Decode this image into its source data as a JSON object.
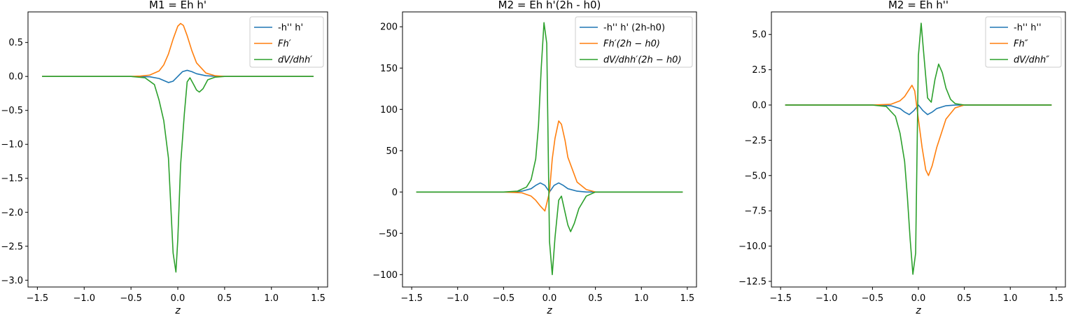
{
  "figure": {
    "background": "#ffffff"
  },
  "series_colors": [
    "#1f77b4",
    "#ff7f0e",
    "#2ca02c"
  ],
  "chart_data": [
    {
      "type": "line",
      "title": "M1 = Eh h'",
      "xlabel": "z",
      "ylabel": "",
      "xlim": [
        -1.6,
        1.6
      ],
      "ylim": [
        -3.1,
        0.95
      ],
      "xticks": [
        -1.5,
        -1.0,
        -0.5,
        0.0,
        0.5,
        1.0,
        1.5
      ],
      "xtick_labels": [
        "−1.5",
        "−1.0",
        "−0.5",
        "0.0",
        "0.5",
        "1.0",
        "1.5"
      ],
      "yticks": [
        0.5,
        0.0,
        -0.5,
        -1.0,
        -1.5,
        -2.0,
        -2.5,
        -3.0
      ],
      "ytick_labels": [
        "0.5",
        "0.0",
        "−0.5",
        "−1.0",
        "−1.5",
        "−2.0",
        "−2.5",
        "−3.0"
      ],
      "grid": false,
      "legend_position": "top-right",
      "series": [
        {
          "name": "-h'' h'",
          "color": "#1f77b4",
          "x": [
            -1.45,
            -0.5,
            -0.3,
            -0.2,
            -0.15,
            -0.1,
            -0.05,
            0.0,
            0.05,
            0.1,
            0.15,
            0.2,
            0.3,
            0.4,
            0.5,
            1.45
          ],
          "y": [
            0.0,
            0.0,
            -0.005,
            -0.03,
            -0.06,
            -0.09,
            -0.07,
            0.0,
            0.07,
            0.09,
            0.07,
            0.04,
            0.01,
            0.003,
            0.0,
            0.0
          ]
        },
        {
          "name": "Fh′",
          "color": "#ff7f0e",
          "x": [
            -1.45,
            -0.5,
            -0.4,
            -0.3,
            -0.2,
            -0.15,
            -0.1,
            -0.05,
            0.0,
            0.03,
            0.06,
            0.1,
            0.15,
            0.2,
            0.3,
            0.4,
            0.5,
            1.45
          ],
          "y": [
            0.0,
            0.0,
            0.005,
            0.02,
            0.08,
            0.17,
            0.33,
            0.55,
            0.74,
            0.78,
            0.75,
            0.6,
            0.38,
            0.2,
            0.05,
            0.01,
            0.0,
            0.0
          ],
          "math": true
        },
        {
          "name": "dV/dhh′",
          "color": "#2ca02c",
          "x": [
            -1.45,
            -0.5,
            -0.35,
            -0.25,
            -0.2,
            -0.15,
            -0.1,
            -0.05,
            -0.02,
            0.0,
            0.03,
            0.07,
            0.1,
            0.13,
            0.17,
            0.2,
            0.23,
            0.27,
            0.32,
            0.4,
            0.5,
            1.45
          ],
          "y": [
            0.0,
            0.0,
            -0.02,
            -0.12,
            -0.35,
            -0.65,
            -1.2,
            -2.6,
            -2.88,
            -2.4,
            -1.3,
            -0.55,
            -0.08,
            -0.02,
            -0.12,
            -0.2,
            -0.23,
            -0.18,
            -0.05,
            -0.01,
            0.0,
            0.0
          ],
          "math": true
        }
      ]
    },
    {
      "type": "line",
      "title": "M2 = Eh h'(2h - h0)",
      "xlabel": "z",
      "ylabel": "",
      "xlim": [
        -1.6,
        1.6
      ],
      "ylim": [
        -115,
        218
      ],
      "xticks": [
        -1.5,
        -1.0,
        -0.5,
        0.0,
        0.5,
        1.0,
        1.5
      ],
      "xtick_labels": [
        "−1.5",
        "−1.0",
        "−0.5",
        "0.0",
        "0.5",
        "1.0",
        "1.5"
      ],
      "yticks": [
        200,
        150,
        100,
        50,
        0,
        -50,
        -100
      ],
      "ytick_labels": [
        "200",
        "150",
        "100",
        "50",
        "0",
        "−50",
        "−100"
      ],
      "grid": false,
      "legend_position": "top-right",
      "series": [
        {
          "name": "-h'' h' (2h-h0)",
          "color": "#1f77b4",
          "x": [
            -1.45,
            -0.4,
            -0.3,
            -0.2,
            -0.15,
            -0.1,
            -0.05,
            0.0,
            0.05,
            0.1,
            0.15,
            0.2,
            0.3,
            0.4,
            1.45
          ],
          "y": [
            0.0,
            0.0,
            1.0,
            4.0,
            8.0,
            11.0,
            8.0,
            0.0,
            8.0,
            11.0,
            8.0,
            4.0,
            1.0,
            0.0,
            0.0
          ],
          "raw_name": true
        },
        {
          "name": "Fh′(2h − h0)",
          "color": "#ff7f0e",
          "x": [
            -1.45,
            -0.5,
            -0.3,
            -0.2,
            -0.15,
            -0.1,
            -0.05,
            0.0,
            0.03,
            0.06,
            0.1,
            0.13,
            0.17,
            0.2,
            0.3,
            0.4,
            0.5,
            1.45
          ],
          "y": [
            0.0,
            0.0,
            -1.0,
            -5.0,
            -10.0,
            -17.0,
            -23.0,
            0.0,
            40.0,
            65.0,
            86.0,
            82.0,
            62.0,
            42.0,
            12.0,
            3.0,
            0.0,
            0.0
          ],
          "math": true
        },
        {
          "name": "dV/dhh′(2h − h0)",
          "color": "#2ca02c",
          "x": [
            -1.45,
            -0.5,
            -0.35,
            -0.25,
            -0.2,
            -0.15,
            -0.12,
            -0.09,
            -0.06,
            -0.03,
            0.0,
            0.03,
            0.06,
            0.1,
            0.13,
            0.17,
            0.2,
            0.23,
            0.27,
            0.32,
            0.4,
            0.5,
            1.45
          ],
          "y": [
            0.0,
            0.0,
            1.0,
            6.0,
            15.0,
            40.0,
            80.0,
            150.0,
            205.0,
            180.0,
            -60.0,
            -100.0,
            -55.0,
            -10.0,
            -5.0,
            -25.0,
            -40.0,
            -48.0,
            -38.0,
            -20.0,
            -5.0,
            0.0,
            0.0
          ],
          "math": true
        }
      ]
    },
    {
      "type": "line",
      "title": "M2 = Eh h''",
      "xlabel": "z",
      "ylabel": "",
      "xlim": [
        -1.6,
        1.6
      ],
      "ylim": [
        -12.9,
        6.6
      ],
      "xticks": [
        -1.5,
        -1.0,
        -0.5,
        0.0,
        0.5,
        1.0,
        1.5
      ],
      "xtick_labels": [
        "−1.5",
        "−1.0",
        "−0.5",
        "0.0",
        "0.5",
        "1.0",
        "1.5"
      ],
      "yticks": [
        5.0,
        2.5,
        0.0,
        -2.5,
        -5.0,
        -7.5,
        -10.0,
        -12.5
      ],
      "ytick_labels": [
        "5.0",
        "2.5",
        "0.0",
        "−2.5",
        "−5.0",
        "−7.5",
        "−10.0",
        "−12.5"
      ],
      "grid": false,
      "legend_position": "top-right",
      "series": [
        {
          "name": "-h'' h''",
          "color": "#1f77b4",
          "x": [
            -1.45,
            -0.4,
            -0.3,
            -0.2,
            -0.15,
            -0.1,
            -0.05,
            0.0,
            0.05,
            0.1,
            0.15,
            0.2,
            0.3,
            0.4,
            1.45
          ],
          "y": [
            0.0,
            0.0,
            -0.05,
            -0.25,
            -0.5,
            -0.68,
            -0.4,
            0.0,
            -0.4,
            -0.68,
            -0.5,
            -0.25,
            -0.05,
            0.0,
            0.0
          ],
          "raw_name": true
        },
        {
          "name": "Fh″",
          "color": "#ff7f0e",
          "x": [
            -1.45,
            -0.5,
            -0.3,
            -0.2,
            -0.15,
            -0.1,
            -0.07,
            -0.04,
            0.0,
            0.04,
            0.08,
            0.11,
            0.15,
            0.2,
            0.3,
            0.4,
            0.5,
            1.45
          ],
          "y": [
            0.0,
            0.0,
            0.05,
            0.3,
            0.6,
            1.1,
            1.4,
            1.0,
            -1.0,
            -3.0,
            -4.6,
            -5.0,
            -4.3,
            -3.0,
            -1.0,
            -0.2,
            0.0,
            0.0
          ],
          "math": true
        },
        {
          "name": "dV/dhh″",
          "color": "#2ca02c",
          "x": [
            -1.45,
            -0.5,
            -0.35,
            -0.25,
            -0.2,
            -0.15,
            -0.12,
            -0.09,
            -0.06,
            -0.03,
            0.0,
            0.03,
            0.06,
            0.1,
            0.14,
            0.18,
            0.22,
            0.26,
            0.3,
            0.35,
            0.4,
            0.5,
            1.45
          ],
          "y": [
            0.0,
            0.0,
            -0.1,
            -0.8,
            -2.0,
            -4.0,
            -6.5,
            -9.5,
            -12.0,
            -10.5,
            3.5,
            5.8,
            3.5,
            0.5,
            0.2,
            1.8,
            2.9,
            2.3,
            1.2,
            0.4,
            0.1,
            0.0,
            0.0
          ],
          "math": true
        }
      ]
    }
  ]
}
